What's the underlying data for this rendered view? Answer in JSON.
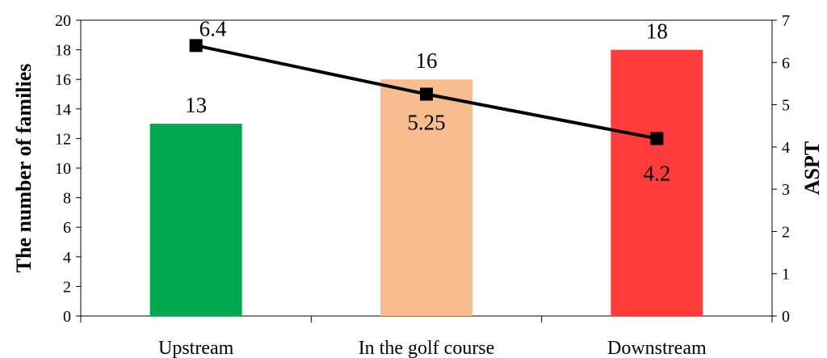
{
  "chart_data": {
    "type": "bar",
    "categories": [
      "Upstream",
      "In the golf course",
      "Downstream"
    ],
    "series": [
      {
        "type": "bar",
        "axis": "left",
        "values": [
          13,
          16,
          18
        ],
        "colors": [
          "#00A84F",
          "#F8BD8E",
          "#FF3B3B"
        ]
      },
      {
        "type": "line",
        "axis": "right",
        "values": [
          6.4,
          5.25,
          4.2
        ],
        "color": "#000000",
        "marker": "square"
      }
    ],
    "bar_labels": [
      "13",
      "16",
      "18"
    ],
    "line_labels": [
      "6.4",
      "5.25",
      "4.2"
    ],
    "ylabel": "The number of families",
    "y2label": "ASPT",
    "ylim": [
      0,
      20
    ],
    "y2lim": [
      0,
      7
    ],
    "yticks": [
      "0",
      "2",
      "4",
      "6",
      "8",
      "10",
      "12",
      "14",
      "16",
      "18",
      "20"
    ],
    "y2ticks": [
      "0",
      "1",
      "2",
      "3",
      "4",
      "5",
      "6",
      "7"
    ],
    "grid": false,
    "legend": "none"
  }
}
